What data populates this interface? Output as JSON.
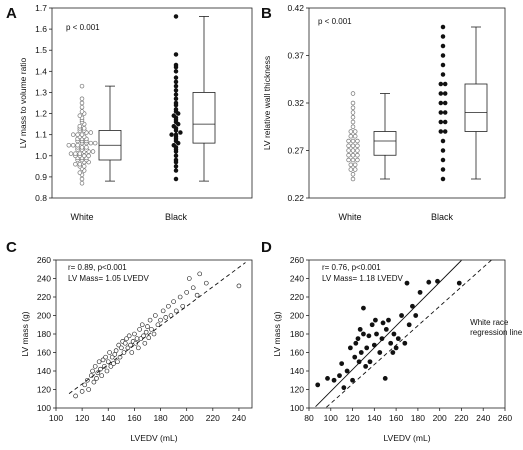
{
  "chart_data": [
    {
      "panel": "A",
      "type": "box_dot",
      "annotation": "p < 0.001",
      "ylabel": "LV mass to volume ratio",
      "ylim": [
        0.8,
        1.7
      ],
      "yticks": [
        "0.8",
        "0.9",
        "1.0",
        "1.1",
        "1.2",
        "1.3",
        "1.4",
        "1.5",
        "1.6",
        "1.7"
      ],
      "categories": [
        "White",
        "Black"
      ],
      "groups": [
        {
          "name": "White",
          "marker": "open",
          "box": {
            "whisker_low": 0.88,
            "q1": 0.98,
            "median": 1.05,
            "q3": 1.12,
            "whisker_high": 1.33
          },
          "values": [
            0.87,
            0.89,
            0.91,
            0.92,
            0.93,
            0.94,
            0.95,
            0.95,
            0.96,
            0.96,
            0.97,
            0.97,
            0.98,
            0.98,
            0.98,
            0.99,
            0.99,
            0.99,
            1.0,
            1.0,
            1.0,
            1.0,
            1.01,
            1.01,
            1.01,
            1.02,
            1.02,
            1.02,
            1.03,
            1.03,
            1.03,
            1.04,
            1.04,
            1.04,
            1.05,
            1.05,
            1.05,
            1.06,
            1.06,
            1.06,
            1.06,
            1.07,
            1.07,
            1.07,
            1.08,
            1.08,
            1.08,
            1.09,
            1.09,
            1.1,
            1.1,
            1.1,
            1.11,
            1.11,
            1.12,
            1.12,
            1.13,
            1.13,
            1.14,
            1.15,
            1.16,
            1.17,
            1.18,
            1.19,
            1.2,
            1.21,
            1.23,
            1.25,
            1.27,
            1.33
          ]
        },
        {
          "name": "Black",
          "marker": "filled",
          "box": {
            "whisker_low": 0.88,
            "q1": 1.06,
            "median": 1.15,
            "q3": 1.3,
            "whisker_high": 1.66
          },
          "values": [
            0.89,
            0.93,
            0.95,
            0.97,
            0.98,
            1.0,
            1.02,
            1.03,
            1.04,
            1.05,
            1.06,
            1.07,
            1.08,
            1.09,
            1.1,
            1.1,
            1.11,
            1.12,
            1.13,
            1.14,
            1.15,
            1.16,
            1.17,
            1.18,
            1.19,
            1.2,
            1.21,
            1.22,
            1.24,
            1.25,
            1.27,
            1.29,
            1.31,
            1.33,
            1.35,
            1.37,
            1.4,
            1.42,
            1.43,
            1.48,
            1.66
          ]
        }
      ]
    },
    {
      "panel": "B",
      "type": "box_dot",
      "annotation": "p < 0.001",
      "ylabel": "LV relative wall thickness",
      "ylim": [
        0.22,
        0.42
      ],
      "yticks": [
        "0.22",
        "0.27",
        "0.32",
        "0.37",
        "0.42"
      ],
      "categories": [
        "White",
        "Black"
      ],
      "groups": [
        {
          "name": "White",
          "marker": "open",
          "box": {
            "whisker_low": 0.24,
            "q1": 0.265,
            "median": 0.28,
            "q3": 0.29,
            "whisker_high": 0.33
          },
          "values": [
            0.24,
            0.245,
            0.25,
            0.25,
            0.255,
            0.255,
            0.26,
            0.26,
            0.26,
            0.265,
            0.265,
            0.265,
            0.27,
            0.27,
            0.27,
            0.275,
            0.275,
            0.275,
            0.28,
            0.28,
            0.28,
            0.285,
            0.285,
            0.29,
            0.29,
            0.295,
            0.3,
            0.305,
            0.31,
            0.315,
            0.32,
            0.33
          ]
        },
        {
          "name": "Black",
          "marker": "filled",
          "box": {
            "whisker_low": 0.24,
            "q1": 0.29,
            "median": 0.31,
            "q3": 0.34,
            "whisker_high": 0.4
          },
          "values": [
            0.24,
            0.25,
            0.26,
            0.27,
            0.28,
            0.29,
            0.29,
            0.3,
            0.3,
            0.31,
            0.31,
            0.32,
            0.32,
            0.33,
            0.33,
            0.34,
            0.34,
            0.35,
            0.36,
            0.37,
            0.38,
            0.39,
            0.4
          ]
        }
      ]
    },
    {
      "panel": "C",
      "type": "scatter",
      "annotations": [
        "r= 0.89, p<0.001",
        "LV Mass= 1.05 LVEDV"
      ],
      "xlabel": "LVEDV (mL)",
      "ylabel": "LV mass (g)",
      "xlim": [
        100,
        250
      ],
      "ylim": [
        100,
        260
      ],
      "xticks": [
        "100",
        "120",
        "140",
        "160",
        "180",
        "200",
        "220",
        "240"
      ],
      "yticks": [
        "100",
        "120",
        "140",
        "160",
        "180",
        "200",
        "220",
        "240",
        "260"
      ],
      "marker": "open",
      "regression": {
        "style": "dashed",
        "slope": 1.05,
        "intercept": 0
      },
      "points": [
        [
          115,
          113
        ],
        [
          120,
          118
        ],
        [
          122,
          125
        ],
        [
          124,
          130
        ],
        [
          125,
          120
        ],
        [
          127,
          135
        ],
        [
          128,
          140
        ],
        [
          129,
          128
        ],
        [
          130,
          145
        ],
        [
          131,
          132
        ],
        [
          132,
          138
        ],
        [
          133,
          150
        ],
        [
          134,
          142
        ],
        [
          135,
          135
        ],
        [
          136,
          152
        ],
        [
          137,
          145
        ],
        [
          138,
          155
        ],
        [
          139,
          140
        ],
        [
          140,
          150
        ],
        [
          141,
          160
        ],
        [
          142,
          145
        ],
        [
          143,
          155
        ],
        [
          144,
          148
        ],
        [
          145,
          158
        ],
        [
          146,
          162
        ],
        [
          147,
          150
        ],
        [
          148,
          168
        ],
        [
          149,
          155
        ],
        [
          150,
          165
        ],
        [
          151,
          172
        ],
        [
          152,
          160
        ],
        [
          153,
          170
        ],
        [
          154,
          175
        ],
        [
          155,
          165
        ],
        [
          156,
          178
        ],
        [
          157,
          168
        ],
        [
          158,
          160
        ],
        [
          159,
          172
        ],
        [
          160,
          180
        ],
        [
          161,
          170
        ],
        [
          162,
          175
        ],
        [
          163,
          165
        ],
        [
          164,
          185
        ],
        [
          165,
          175
        ],
        [
          166,
          190
        ],
        [
          167,
          178
        ],
        [
          168,
          170
        ],
        [
          169,
          182
        ],
        [
          170,
          188
        ],
        [
          171,
          176
        ],
        [
          172,
          195
        ],
        [
          173,
          185
        ],
        [
          175,
          180
        ],
        [
          176,
          200
        ],
        [
          178,
          190
        ],
        [
          180,
          195
        ],
        [
          182,
          205
        ],
        [
          184,
          198
        ],
        [
          186,
          210
        ],
        [
          188,
          200
        ],
        [
          190,
          215
        ],
        [
          192,
          205
        ],
        [
          195,
          220
        ],
        [
          197,
          210
        ],
        [
          200,
          225
        ],
        [
          202,
          240
        ],
        [
          205,
          230
        ],
        [
          208,
          222
        ],
        [
          210,
          245
        ],
        [
          215,
          235
        ],
        [
          240,
          232
        ]
      ]
    },
    {
      "panel": "D",
      "type": "scatter",
      "annotations": [
        "r= 0.76, p<0.001",
        "LV Mass= 1.18 LVEDV",
        "White race regression line"
      ],
      "xlabel": "LVEDV (mL)",
      "ylabel": "LV mass (g)",
      "xlim": [
        80,
        260
      ],
      "ylim": [
        100,
        260
      ],
      "xticks": [
        "80",
        "100",
        "120",
        "140",
        "160",
        "180",
        "200",
        "220",
        "240",
        "260"
      ],
      "yticks": [
        "100",
        "120",
        "140",
        "160",
        "180",
        "200",
        "220",
        "240",
        "260"
      ],
      "marker": "filled",
      "regression": {
        "style": "solid",
        "slope": 1.18,
        "intercept": 0
      },
      "reference_line": {
        "name": "White race regression line",
        "style": "dashed",
        "slope": 1.05,
        "intercept": 0
      },
      "points": [
        [
          88,
          125
        ],
        [
          97,
          132
        ],
        [
          103,
          130
        ],
        [
          108,
          135
        ],
        [
          110,
          148
        ],
        [
          112,
          122
        ],
        [
          115,
          140
        ],
        [
          118,
          165
        ],
        [
          120,
          130
        ],
        [
          122,
          155
        ],
        [
          123,
          170
        ],
        [
          125,
          175
        ],
        [
          126,
          150
        ],
        [
          127,
          185
        ],
        [
          128,
          160
        ],
        [
          130,
          180
        ],
        [
          130,
          208
        ],
        [
          132,
          145
        ],
        [
          133,
          165
        ],
        [
          135,
          178
        ],
        [
          136,
          150
        ],
        [
          138,
          190
        ],
        [
          140,
          168
        ],
        [
          141,
          195
        ],
        [
          142,
          180
        ],
        [
          145,
          160
        ],
        [
          147,
          175
        ],
        [
          148,
          192
        ],
        [
          150,
          132
        ],
        [
          151,
          185
        ],
        [
          153,
          195
        ],
        [
          155,
          170
        ],
        [
          157,
          160
        ],
        [
          158,
          180
        ],
        [
          160,
          165
        ],
        [
          162,
          175
        ],
        [
          165,
          200
        ],
        [
          168,
          170
        ],
        [
          170,
          235
        ],
        [
          172,
          190
        ],
        [
          175,
          210
        ],
        [
          178,
          200
        ],
        [
          182,
          225
        ],
        [
          190,
          236
        ],
        [
          198,
          237
        ],
        [
          218,
          235
        ]
      ]
    }
  ]
}
